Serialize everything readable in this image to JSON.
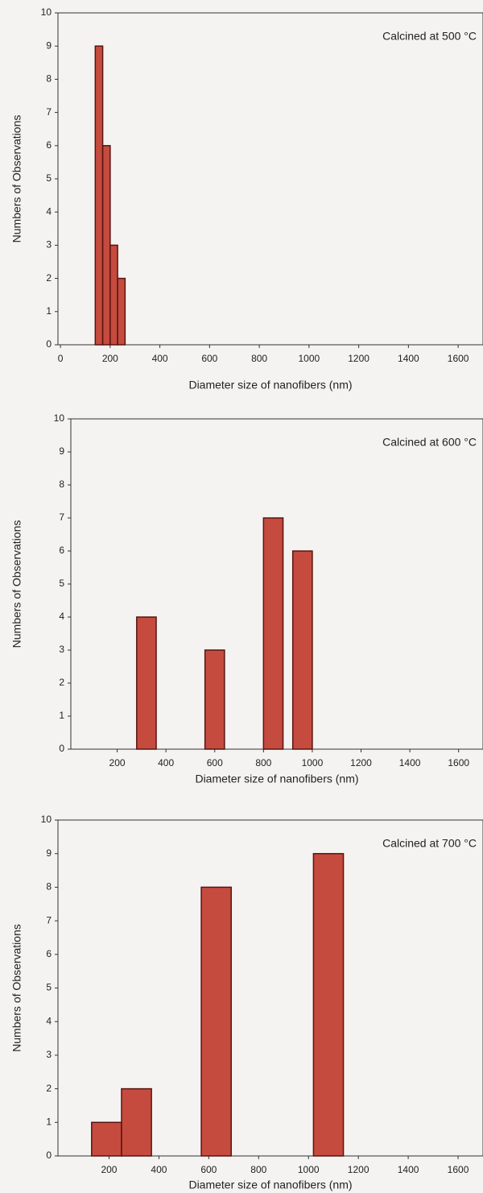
{
  "chart_data": [
    {
      "type": "histogram",
      "annotation": "Calcined at 500 °C",
      "xlabel": "Diameter size of nanofibers (nm)",
      "ylabel": "Numbers of Observations",
      "bins": [
        140,
        170,
        200,
        230,
        260
      ],
      "values": [
        9,
        6,
        3,
        2
      ],
      "color": "#c0392b",
      "xlim": [
        -10,
        1700
      ],
      "xticks": [
        0,
        200,
        400,
        600,
        800,
        1000,
        1200,
        1400,
        1600
      ],
      "ylim": [
        0,
        10
      ],
      "yticks": [
        0,
        1,
        2,
        3,
        4,
        5,
        6,
        7,
        8,
        9,
        10
      ]
    },
    {
      "type": "histogram",
      "annotation": "Calcined at 600 °C",
      "xlabel": "Diameter size of nanofibers (nm)",
      "ylabel": "Numbers of Observations",
      "bins": [
        280,
        360,
        560,
        640,
        800,
        880,
        920,
        1000
      ],
      "values": [
        4,
        0,
        3,
        0,
        7,
        0,
        6
      ],
      "color": "#c0392b",
      "xlim": [
        10,
        1700
      ],
      "xticks": [
        200,
        400,
        600,
        800,
        1000,
        1200,
        1400,
        1600
      ],
      "ylim": [
        0,
        10
      ],
      "yticks": [
        0,
        1,
        2,
        3,
        4,
        5,
        6,
        7,
        8,
        9,
        10
      ]
    },
    {
      "type": "histogram",
      "annotation": "Calcined at 700 °C",
      "xlabel": "Diameter size of nanofibers (nm)",
      "ylabel": "Numbers of Observations",
      "bins": [
        130,
        250,
        370,
        570,
        690,
        1020,
        1140
      ],
      "values": [
        1,
        2,
        0,
        8,
        0,
        9
      ],
      "color": "#c0392b",
      "xlim": [
        -5,
        1700
      ],
      "xticks": [
        200,
        400,
        600,
        800,
        1000,
        1200,
        1400,
        1600
      ],
      "ylim": [
        0,
        10
      ],
      "yticks": [
        0,
        1,
        2,
        3,
        4,
        5,
        6,
        7,
        8,
        9,
        10
      ]
    }
  ]
}
